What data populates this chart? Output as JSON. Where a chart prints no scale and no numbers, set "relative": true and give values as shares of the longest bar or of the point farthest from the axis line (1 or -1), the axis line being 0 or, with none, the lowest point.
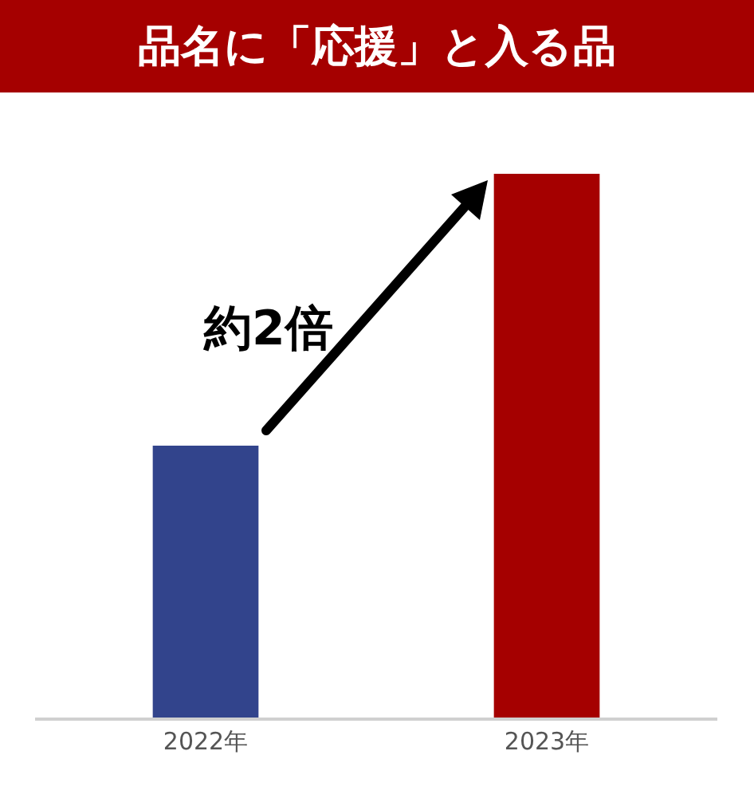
{
  "chart_data": {
    "type": "bar",
    "title": "品名に「応援」と入る品",
    "categories": [
      "2022年",
      "2023年"
    ],
    "values": [
      0.5,
      1
    ],
    "colors": [
      "#32448c",
      "#a50000"
    ],
    "relative": true,
    "annotations": [
      "約2倍"
    ],
    "grid": false,
    "legend": false
  }
}
